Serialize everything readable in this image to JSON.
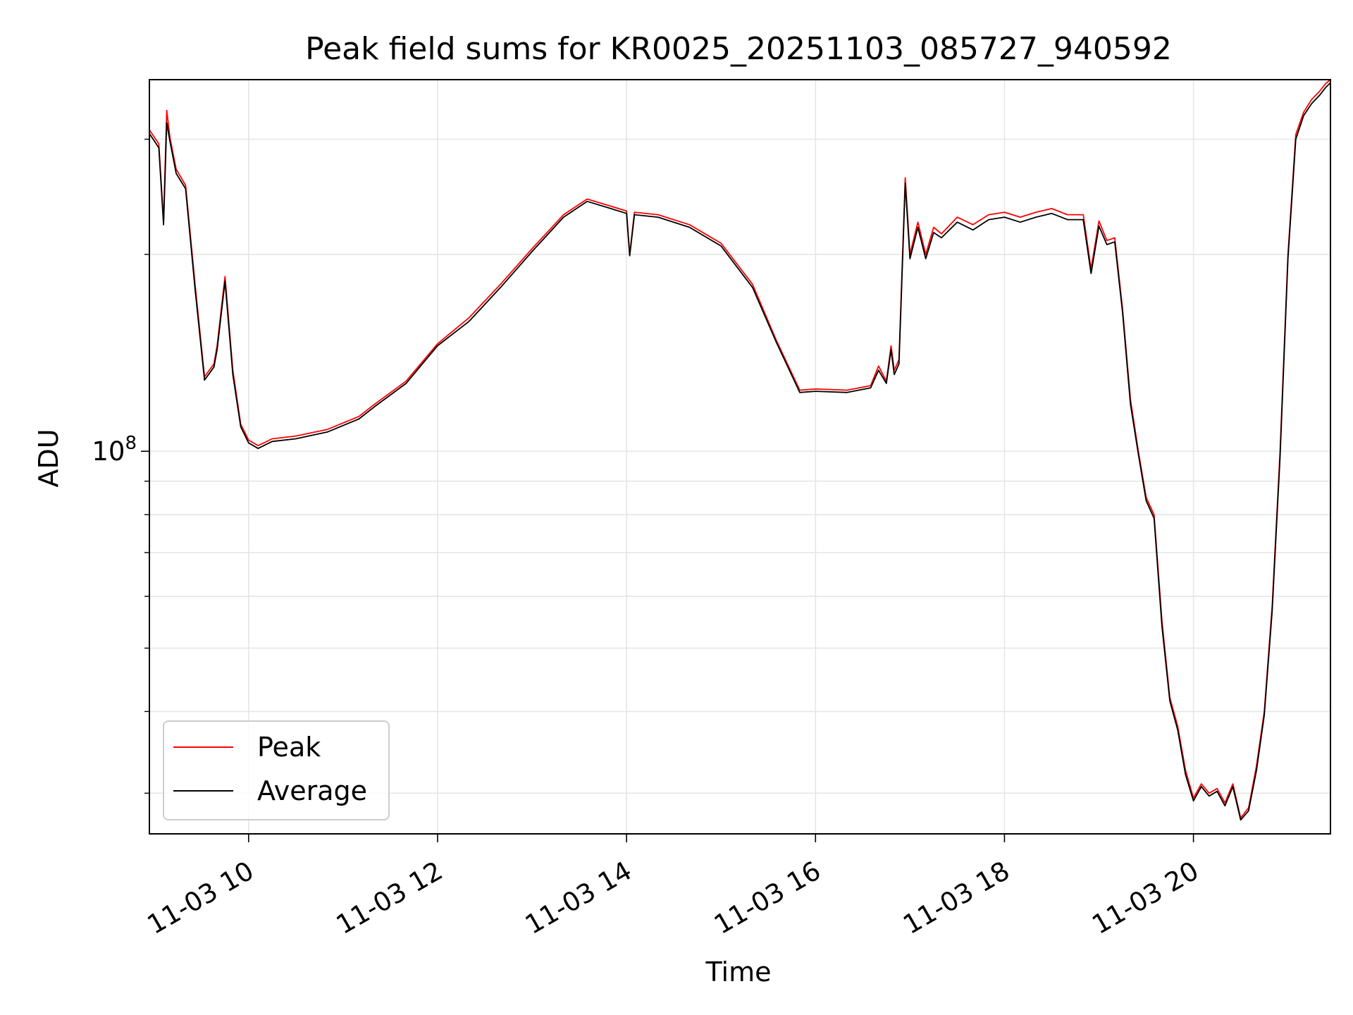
{
  "chart_data": {
    "type": "line",
    "title": "Peak field sums for KR0025_20251103_085727_940592",
    "xlabel": "Time",
    "ylabel": "ADU",
    "yscale": "log",
    "xlim": [
      "2025-11-03 08:57",
      "2025-11-03 21:27"
    ],
    "ylim": [
      26000000,
      370000000
    ],
    "x_ticks": [
      "11-03 10",
      "11-03 12",
      "11-03 14",
      "11-03 16",
      "11-03 18",
      "11-03 20"
    ],
    "y_ticks": [
      {
        "label": "10",
        "exponent": "8"
      }
    ],
    "grid": true,
    "legend": {
      "position": "lower-left",
      "entries": [
        "Peak",
        "Average"
      ]
    },
    "series_colors": {
      "Peak": "#ff0000",
      "Average": "#000000"
    },
    "x": [
      "2025-11-03 08:57",
      "2025-11-03 09:03",
      "2025-11-03 09:06",
      "2025-11-03 09:08",
      "2025-11-03 09:10",
      "2025-11-03 09:14",
      "2025-11-03 09:20",
      "2025-11-03 09:26",
      "2025-11-03 09:32",
      "2025-11-03 09:38",
      "2025-11-03 09:40",
      "2025-11-03 09:45",
      "2025-11-03 09:50",
      "2025-11-03 09:55",
      "2025-11-03 10:00",
      "2025-11-03 10:06",
      "2025-11-03 10:15",
      "2025-11-03 10:30",
      "2025-11-03 10:50",
      "2025-11-03 11:10",
      "2025-11-03 11:20",
      "2025-11-03 11:40",
      "2025-11-03 12:00",
      "2025-11-03 12:20",
      "2025-11-03 12:40",
      "2025-11-03 13:00",
      "2025-11-03 13:20",
      "2025-11-03 13:35",
      "2025-11-03 13:50",
      "2025-11-03 14:00",
      "2025-11-03 14:02",
      "2025-11-03 14:05",
      "2025-11-03 14:20",
      "2025-11-03 14:40",
      "2025-11-03 15:00",
      "2025-11-03 15:20",
      "2025-11-03 15:35",
      "2025-11-03 15:50",
      "2025-11-03 16:00",
      "2025-11-03 16:20",
      "2025-11-03 16:35",
      "2025-11-03 16:40",
      "2025-11-03 16:45",
      "2025-11-03 16:48",
      "2025-11-03 16:50",
      "2025-11-03 16:53",
      "2025-11-03 16:57",
      "2025-11-03 17:00",
      "2025-11-03 17:05",
      "2025-11-03 17:10",
      "2025-11-03 17:15",
      "2025-11-03 17:20",
      "2025-11-03 17:30",
      "2025-11-03 17:40",
      "2025-11-03 17:50",
      "2025-11-03 18:00",
      "2025-11-03 18:10",
      "2025-11-03 18:20",
      "2025-11-03 18:30",
      "2025-11-03 18:40",
      "2025-11-03 18:50",
      "2025-11-03 18:55",
      "2025-11-03 19:00",
      "2025-11-03 19:05",
      "2025-11-03 19:10",
      "2025-11-03 19:15",
      "2025-11-03 19:20",
      "2025-11-03 19:25",
      "2025-11-03 19:30",
      "2025-11-03 19:35",
      "2025-11-03 19:40",
      "2025-11-03 19:45",
      "2025-11-03 19:50",
      "2025-11-03 19:55",
      "2025-11-03 20:00",
      "2025-11-03 20:05",
      "2025-11-03 20:10",
      "2025-11-03 20:15",
      "2025-11-03 20:20",
      "2025-11-03 20:25",
      "2025-11-03 20:30",
      "2025-11-03 20:35",
      "2025-11-03 20:40",
      "2025-11-03 20:45",
      "2025-11-03 20:50",
      "2025-11-03 20:55",
      "2025-11-03 21:00",
      "2025-11-03 21:05",
      "2025-11-03 21:10",
      "2025-11-03 21:15",
      "2025-11-03 21:20",
      "2025-11-03 21:24",
      "2025-11-03 21:27"
    ],
    "series": [
      {
        "name": "Peak",
        "values": [
          310000000,
          295000000,
          225000000,
          332000000,
          302000000,
          270000000,
          255000000,
          180000000,
          130000000,
          136000000,
          145000000,
          185000000,
          133000000,
          110000000,
          104000000,
          102000000,
          104500000,
          105500000,
          108000000,
          113000000,
          118000000,
          128000000,
          146000000,
          160000000,
          180000000,
          204000000,
          230000000,
          243000000,
          237000000,
          233000000,
          200000000,
          232000000,
          230000000,
          222000000,
          208000000,
          180000000,
          148000000,
          124000000,
          124500000,
          124000000,
          126000000,
          135000000,
          128000000,
          145000000,
          133000000,
          138000000,
          262000000,
          200000000,
          224000000,
          200000000,
          220000000,
          215000000,
          228000000,
          222000000,
          230000000,
          232000000,
          228000000,
          232000000,
          235000000,
          230000000,
          230000000,
          190000000,
          225000000,
          210000000,
          212000000,
          165000000,
          120000000,
          100000000,
          85000000,
          80000000,
          55000000,
          42000000,
          38000000,
          32500000,
          29500000,
          31000000,
          30000000,
          30500000,
          29000000,
          31000000,
          27500000,
          28500000,
          33000000,
          40000000,
          58000000,
          100000000,
          200000000,
          305000000,
          330000000,
          345000000,
          355000000,
          365000000,
          370000000
        ]
      },
      {
        "name": "Average",
        "values": [
          306000000,
          291000000,
          222000000,
          318000000,
          298000000,
          266000000,
          252000000,
          177000000,
          128500000,
          134500000,
          143000000,
          182000000,
          131000000,
          109000000,
          103000000,
          101000000,
          103500000,
          104500000,
          107000000,
          112000000,
          117000000,
          127000000,
          145000000,
          158000000,
          178000000,
          202000000,
          228000000,
          241000000,
          235000000,
          231000000,
          199000000,
          230000000,
          228000000,
          220000000,
          206000000,
          178000000,
          147000000,
          123000000,
          123500000,
          123000000,
          125000000,
          133000000,
          127000000,
          143000000,
          131000000,
          136000000,
          257000000,
          197000000,
          220000000,
          197000000,
          216000000,
          212000000,
          224000000,
          218000000,
          226000000,
          228000000,
          224000000,
          228000000,
          231000000,
          226000000,
          226000000,
          187000000,
          221000000,
          207000000,
          209000000,
          163000000,
          118000000,
          99000000,
          84000000,
          79000000,
          54000000,
          41500000,
          37500000,
          32000000,
          29200000,
          30700000,
          29700000,
          30200000,
          28700000,
          30700000,
          27300000,
          28200000,
          32500000,
          39500000,
          57000000,
          98000000,
          197000000,
          300000000,
          326000000,
          340000000,
          350000000,
          360000000,
          366000000
        ]
      }
    ]
  }
}
